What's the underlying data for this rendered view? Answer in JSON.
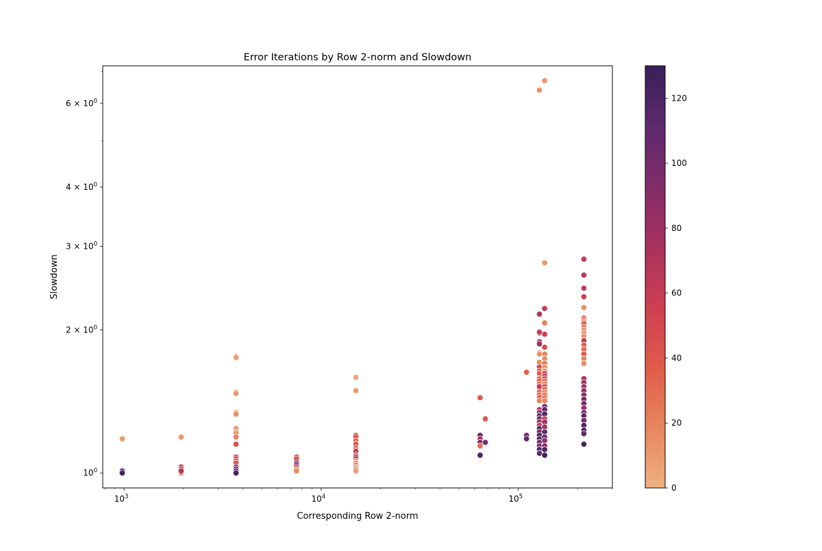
{
  "chart_data": {
    "type": "scatter",
    "title": "Error Iterations by Row 2-norm and Slowdown",
    "xlabel": "Corresponding Row 2-norm",
    "ylabel": "Slowdown",
    "xscale": "log",
    "yscale": "log",
    "xlim": [
      780,
      300000
    ],
    "ylim": [
      0.93,
      7.2
    ],
    "x_ticks": [
      {
        "value": 1000,
        "base": "10",
        "exp": "3"
      },
      {
        "value": 10000,
        "base": "10",
        "exp": "4"
      },
      {
        "value": 100000,
        "base": "10",
        "exp": "5"
      }
    ],
    "y_ticks": [
      {
        "value": 1,
        "mant": "",
        "base": "10",
        "exp": "0"
      },
      {
        "value": 2,
        "mant": "2 × ",
        "base": "10",
        "exp": "0"
      },
      {
        "value": 3,
        "mant": "3 × ",
        "base": "10",
        "exp": "0"
      },
      {
        "value": 4,
        "mant": "4 × ",
        "base": "10",
        "exp": "0"
      },
      {
        "value": 6,
        "mant": "6 × ",
        "base": "10",
        "exp": "0"
      }
    ],
    "colorbar": {
      "colormap": "flare",
      "range": [
        0,
        130
      ],
      "ticks": [
        "0",
        "20",
        "40",
        "60",
        "80",
        "100",
        "120"
      ],
      "tick_values": [
        0,
        20,
        40,
        60,
        80,
        100,
        120
      ],
      "stops": [
        "#edb081",
        "#e8865e",
        "#e05b4a",
        "#cd3e51",
        "#a8325e",
        "#832c69",
        "#5c2a6e",
        "#3a1f58"
      ]
    },
    "points": [
      [
        980,
        1.18,
        8
      ],
      [
        980,
        1.01,
        110
      ],
      [
        980,
        1.0,
        125
      ],
      [
        1950,
        1.19,
        10
      ],
      [
        1950,
        1.03,
        55
      ],
      [
        1950,
        1.02,
        60
      ],
      [
        1950,
        1.01,
        45
      ],
      [
        1950,
        1.0,
        30
      ],
      [
        1950,
        1.0,
        20
      ],
      [
        1950,
        1.01,
        70
      ],
      [
        3700,
        1.76,
        5
      ],
      [
        3700,
        1.75,
        8
      ],
      [
        3700,
        1.48,
        5
      ],
      [
        3700,
        1.47,
        10
      ],
      [
        3700,
        1.34,
        8
      ],
      [
        3700,
        1.33,
        12
      ],
      [
        3700,
        1.24,
        10
      ],
      [
        3700,
        1.22,
        15
      ],
      [
        3700,
        1.21,
        12
      ],
      [
        3700,
        1.19,
        20
      ],
      [
        3700,
        1.15,
        45
      ],
      [
        3700,
        1.08,
        55
      ],
      [
        3700,
        1.07,
        60
      ],
      [
        3700,
        1.06,
        50
      ],
      [
        3700,
        1.05,
        40
      ],
      [
        3700,
        1.03,
        80
      ],
      [
        3700,
        1.02,
        100
      ],
      [
        3700,
        1.01,
        110
      ],
      [
        3700,
        1.0,
        125
      ],
      [
        7500,
        1.08,
        55
      ],
      [
        7500,
        1.07,
        45
      ],
      [
        7500,
        1.05,
        90
      ],
      [
        7500,
        1.04,
        100
      ],
      [
        7500,
        1.03,
        70
      ],
      [
        7500,
        1.02,
        20
      ],
      [
        7500,
        1.01,
        15
      ],
      [
        15000,
        1.59,
        5
      ],
      [
        15000,
        1.49,
        10
      ],
      [
        15000,
        1.2,
        50
      ],
      [
        15000,
        1.19,
        45
      ],
      [
        15000,
        1.17,
        30
      ],
      [
        15000,
        1.15,
        40
      ],
      [
        15000,
        1.13,
        55
      ],
      [
        15000,
        1.12,
        35
      ],
      [
        15000,
        1.11,
        60
      ],
      [
        15000,
        1.09,
        45
      ],
      [
        15000,
        1.08,
        75
      ],
      [
        15000,
        1.07,
        100
      ],
      [
        15000,
        1.06,
        20
      ],
      [
        15000,
        1.05,
        15
      ],
      [
        15000,
        1.04,
        25
      ],
      [
        15000,
        1.03,
        10
      ],
      [
        15000,
        1.02,
        12
      ],
      [
        15000,
        1.01,
        8
      ],
      [
        64000,
        1.44,
        40
      ],
      [
        64000,
        1.2,
        110
      ],
      [
        64000,
        1.18,
        70
      ],
      [
        64000,
        1.16,
        100
      ],
      [
        64000,
        1.14,
        30
      ],
      [
        64000,
        1.09,
        120
      ],
      [
        68000,
        1.3,
        40
      ],
      [
        68000,
        1.16,
        95
      ],
      [
        110000,
        1.63,
        35
      ],
      [
        110000,
        1.2,
        100
      ],
      [
        110000,
        1.18,
        110
      ],
      [
        128000,
        2.16,
        70
      ],
      [
        128000,
        1.97,
        50
      ],
      [
        128000,
        1.89,
        70
      ],
      [
        128000,
        1.87,
        80
      ],
      [
        128000,
        1.79,
        20
      ],
      [
        128000,
        1.78,
        15
      ],
      [
        128000,
        1.71,
        15
      ],
      [
        128000,
        1.67,
        50
      ],
      [
        128000,
        1.64,
        40
      ],
      [
        128000,
        1.62,
        35
      ],
      [
        128000,
        1.58,
        30
      ],
      [
        128000,
        1.56,
        45
      ],
      [
        128000,
        1.54,
        25
      ],
      [
        128000,
        1.52,
        60
      ],
      [
        128000,
        1.48,
        35
      ],
      [
        128000,
        1.46,
        30
      ],
      [
        128000,
        1.44,
        40
      ],
      [
        128000,
        1.42,
        20
      ],
      [
        128000,
        1.36,
        70
      ],
      [
        128000,
        1.34,
        90
      ],
      [
        128000,
        1.32,
        100
      ],
      [
        128000,
        1.3,
        110
      ],
      [
        128000,
        1.28,
        80
      ],
      [
        128000,
        1.26,
        60
      ],
      [
        128000,
        1.24,
        120
      ],
      [
        128000,
        1.22,
        100
      ],
      [
        128000,
        1.2,
        125
      ],
      [
        128000,
        1.18,
        115
      ],
      [
        128000,
        1.16,
        105
      ],
      [
        128000,
        1.14,
        90
      ],
      [
        128000,
        1.12,
        120
      ],
      [
        128000,
        1.1,
        110
      ],
      [
        128000,
        6.4,
        15
      ],
      [
        128000,
        1.98,
        60
      ],
      [
        136000,
        6.7,
        10
      ],
      [
        136000,
        2.77,
        10
      ],
      [
        136000,
        2.22,
        60
      ],
      [
        136000,
        2.07,
        20
      ],
      [
        136000,
        1.96,
        55
      ],
      [
        136000,
        1.84,
        45
      ],
      [
        136000,
        1.78,
        20
      ],
      [
        136000,
        1.74,
        15
      ],
      [
        136000,
        1.7,
        25
      ],
      [
        136000,
        1.67,
        12
      ],
      [
        136000,
        1.64,
        10
      ],
      [
        136000,
        1.62,
        55
      ],
      [
        136000,
        1.6,
        65
      ],
      [
        136000,
        1.58,
        45
      ],
      [
        136000,
        1.56,
        30
      ],
      [
        136000,
        1.54,
        20
      ],
      [
        136000,
        1.52,
        50
      ],
      [
        136000,
        1.5,
        35
      ],
      [
        136000,
        1.48,
        15
      ],
      [
        136000,
        1.46,
        25
      ],
      [
        136000,
        1.44,
        30
      ],
      [
        136000,
        1.42,
        20
      ],
      [
        136000,
        1.38,
        100
      ],
      [
        136000,
        1.36,
        110
      ],
      [
        136000,
        1.33,
        120
      ],
      [
        136000,
        1.3,
        60
      ],
      [
        136000,
        1.28,
        80
      ],
      [
        136000,
        1.25,
        75
      ],
      [
        136000,
        1.22,
        110
      ],
      [
        136000,
        1.19,
        100
      ],
      [
        136000,
        1.17,
        85
      ],
      [
        136000,
        1.14,
        90
      ],
      [
        136000,
        1.12,
        120
      ],
      [
        136000,
        1.09,
        125
      ],
      [
        215000,
        2.82,
        60
      ],
      [
        215000,
        2.61,
        65
      ],
      [
        215000,
        2.45,
        60
      ],
      [
        215000,
        2.35,
        55
      ],
      [
        215000,
        2.23,
        15
      ],
      [
        215000,
        2.12,
        40
      ],
      [
        215000,
        2.1,
        30
      ],
      [
        215000,
        2.08,
        20
      ],
      [
        215000,
        2.06,
        50
      ],
      [
        215000,
        2.03,
        25
      ],
      [
        215000,
        2.0,
        15
      ],
      [
        215000,
        1.97,
        12
      ],
      [
        215000,
        1.94,
        10
      ],
      [
        215000,
        1.9,
        60
      ],
      [
        215000,
        1.86,
        35
      ],
      [
        215000,
        1.82,
        30
      ],
      [
        215000,
        1.78,
        40
      ],
      [
        215000,
        1.74,
        20
      ],
      [
        215000,
        1.7,
        15
      ],
      [
        215000,
        1.58,
        70
      ],
      [
        215000,
        1.55,
        80
      ],
      [
        215000,
        1.52,
        75
      ],
      [
        215000,
        1.49,
        85
      ],
      [
        215000,
        1.46,
        90
      ],
      [
        215000,
        1.43,
        95
      ],
      [
        215000,
        1.4,
        100
      ],
      [
        215000,
        1.37,
        80
      ],
      [
        215000,
        1.34,
        105
      ],
      [
        215000,
        1.32,
        110
      ],
      [
        215000,
        1.29,
        100
      ],
      [
        215000,
        1.26,
        115
      ],
      [
        215000,
        1.23,
        120
      ],
      [
        215000,
        1.21,
        110
      ],
      [
        215000,
        1.15,
        125
      ]
    ]
  }
}
